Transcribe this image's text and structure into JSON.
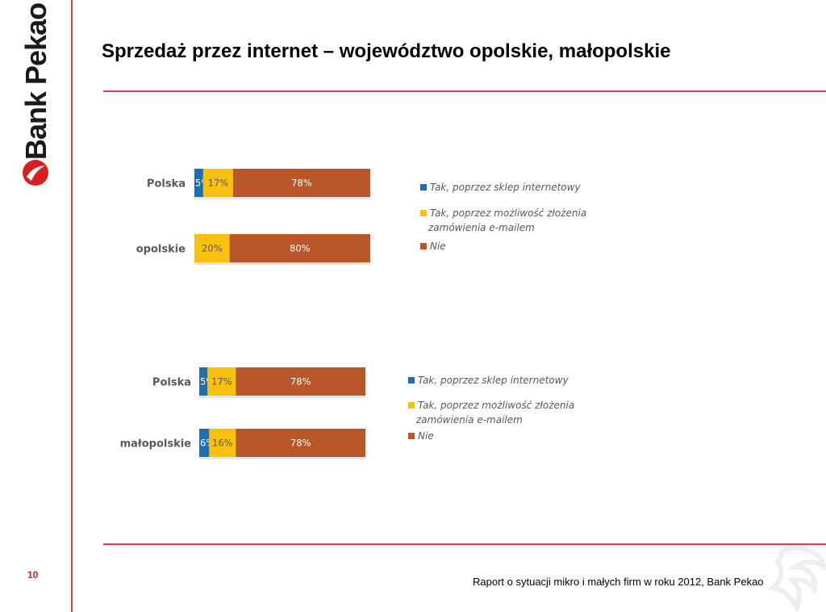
{
  "title": "Sprzedaż przez internet – województwo opolskie, małopolskie",
  "brand": {
    "name": "Bank Pekao",
    "color": "#d81e1e"
  },
  "page_number": "10",
  "footer": "Raport  o sytuacji mikro i małych firm w roku 2012, Bank Pekao",
  "colors": {
    "accent_rule": "#e0403a",
    "series": [
      "#1f6eb4",
      "#f7c10e",
      "#b9562a"
    ]
  },
  "chart_data": [
    {
      "type": "bar",
      "orientation": "horizontal",
      "stacked": true,
      "categories": [
        "Polska",
        "opolskie"
      ],
      "series": [
        {
          "name": "Tak, poprzez sklep internetowy",
          "values": [
            5,
            0
          ],
          "labels": [
            "5%",
            ""
          ]
        },
        {
          "name": "Tak, poprzez możliwość złożenia zamówienia e-mailem",
          "legend_lines": [
            "Tak, poprzez możliwość złożenia",
            "zamówienia e-mailem"
          ],
          "values": [
            17,
            20
          ],
          "labels": [
            "17%",
            "20%"
          ]
        },
        {
          "name": "Nie",
          "values": [
            78,
            80
          ],
          "labels": [
            "78%",
            "80%"
          ]
        }
      ],
      "xlim": [
        0,
        100
      ],
      "legend_position": "right",
      "grid": false
    },
    {
      "type": "bar",
      "orientation": "horizontal",
      "stacked": true,
      "categories": [
        "Polska",
        "małopolskie"
      ],
      "series": [
        {
          "name": "Tak, poprzez sklep internetowy",
          "values": [
            5,
            6
          ],
          "labels": [
            "5%",
            "6%"
          ]
        },
        {
          "name": "Tak, poprzez możliwość złożenia zamówienia e-mailem",
          "legend_lines": [
            "Tak, poprzez możliwość złożenia",
            "zamówienia e-mailem"
          ],
          "values": [
            17,
            16
          ],
          "labels": [
            "17%",
            "16%"
          ]
        },
        {
          "name": "Nie",
          "values": [
            78,
            78
          ],
          "labels": [
            "78%",
            "78%"
          ]
        }
      ],
      "xlim": [
        0,
        100
      ],
      "legend_position": "right",
      "grid": false
    }
  ]
}
